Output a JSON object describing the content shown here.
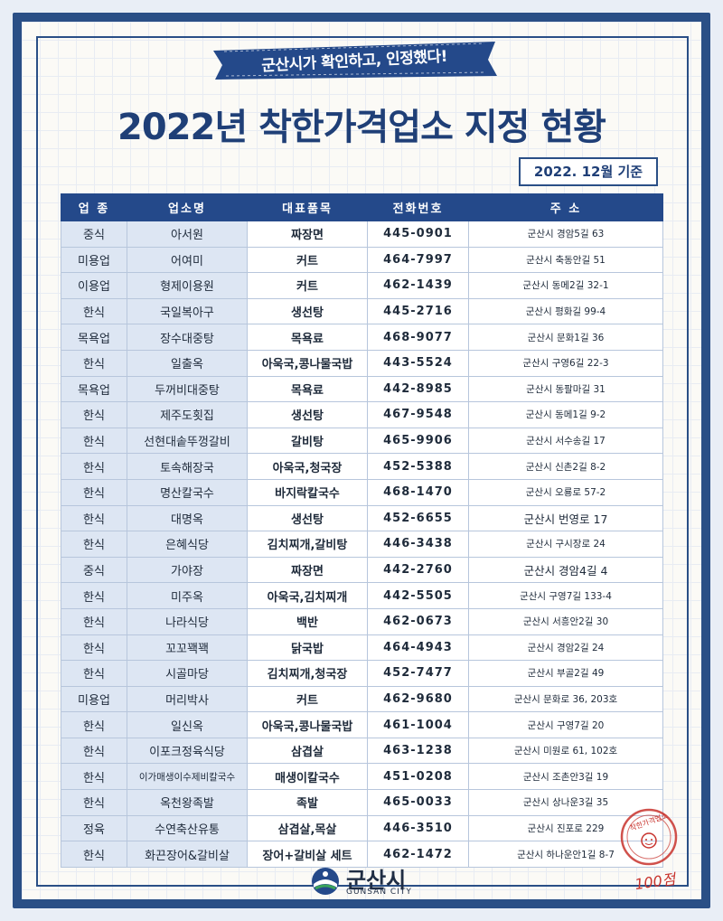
{
  "ribbon_text": "군산시가 확인하고, 인정했다!",
  "title": "2022년 착한가격업소 지정 현황",
  "date_badge": "2022. 12월 기준",
  "columns": [
    "업 종",
    "업소명",
    "대표품목",
    "전화번호",
    "주 소"
  ],
  "rows": [
    [
      "중식",
      "아서원",
      "짜장면",
      "445-0901",
      "군산시 경암5길 63"
    ],
    [
      "미용업",
      "어여미",
      "커트",
      "464-7997",
      "군산시 축동안길 51"
    ],
    [
      "이용업",
      "형제이용원",
      "커트",
      "462-1439",
      "군산시 동메2길 32-1"
    ],
    [
      "한식",
      "국일복아구",
      "생선탕",
      "445-2716",
      "군산시 평화길 99-4"
    ],
    [
      "목욕업",
      "장수대중탕",
      "목욕료",
      "468-9077",
      "군산시 문화1길 36"
    ],
    [
      "한식",
      "일출옥",
      "아욱국,콩나물국밥",
      "443-5524",
      "군산시 구영6길 22-3"
    ],
    [
      "목욕업",
      "두꺼비대중탕",
      "목욕료",
      "442-8985",
      "군산시 동팔마길 31"
    ],
    [
      "한식",
      "제주도횟집",
      "생선탕",
      "467-9548",
      "군산시 동메1길 9-2"
    ],
    [
      "한식",
      "선현대솥뚜껑갈비",
      "갈비탕",
      "465-9906",
      "군산시 서수송길 17"
    ],
    [
      "한식",
      "토속해장국",
      "아욱국,청국장",
      "452-5388",
      "군산시 신촌2길 8-2"
    ],
    [
      "한식",
      "명산칼국수",
      "바지락칼국수",
      "468-1470",
      "군산시 오룡로 57-2"
    ],
    [
      "한식",
      "대명옥",
      "생선탕",
      "452-6655",
      "군산시 번영로 17"
    ],
    [
      "한식",
      "은혜식당",
      "김치찌개,갈비탕",
      "446-3438",
      "군산시 구시장로 24"
    ],
    [
      "중식",
      "가야장",
      "짜장면",
      "442-2760",
      "군산시 경암4길 4"
    ],
    [
      "한식",
      "미주옥",
      "아욱국,김치찌개",
      "442-5505",
      "군산시 구영7길 133-4"
    ],
    [
      "한식",
      "나라식당",
      "백반",
      "462-0673",
      "군산시 서흥안2길 30"
    ],
    [
      "한식",
      "꼬꼬꽥꽥",
      "닭국밥",
      "464-4943",
      "군산시 경암2길 24"
    ],
    [
      "한식",
      "시골마당",
      "김치찌개,청국장",
      "452-7477",
      "군산시 부골2길 49"
    ],
    [
      "미용업",
      "머리박사",
      "커트",
      "462-9680",
      "군산시 문화로 36, 203호"
    ],
    [
      "한식",
      "일신옥",
      "아욱국,콩나물국밥",
      "461-1004",
      "군산시 구영7길 20"
    ],
    [
      "한식",
      "이포크정육식당",
      "삼겹살",
      "463-1238",
      "군산시 미원로 61, 102호"
    ],
    [
      "한식",
      "이가매생이수제비칼국수",
      "매생이칼국수",
      "451-0208",
      "군산시 조촌안3길 19"
    ],
    [
      "한식",
      "옥천왕족발",
      "족발",
      "465-0033",
      "군산시 상나운3길 35"
    ],
    [
      "정육",
      "수연축산유통",
      "삼겹살,목살",
      "446-3510",
      "군산시 진포로 229"
    ],
    [
      "한식",
      "화끈장어&갈비살",
      "장어+갈비살 세트",
      "462-1472",
      "군산시 하나운안1길 8-7"
    ]
  ],
  "logo": {
    "name": "군산시",
    "english": "GUNSAN CITY"
  },
  "stamp": {
    "text": "착한가격업소",
    "score": "100점"
  },
  "colors": {
    "navy": "#24498a",
    "light_blue": "#dde6f3",
    "stamp_red": "#c8332d"
  }
}
